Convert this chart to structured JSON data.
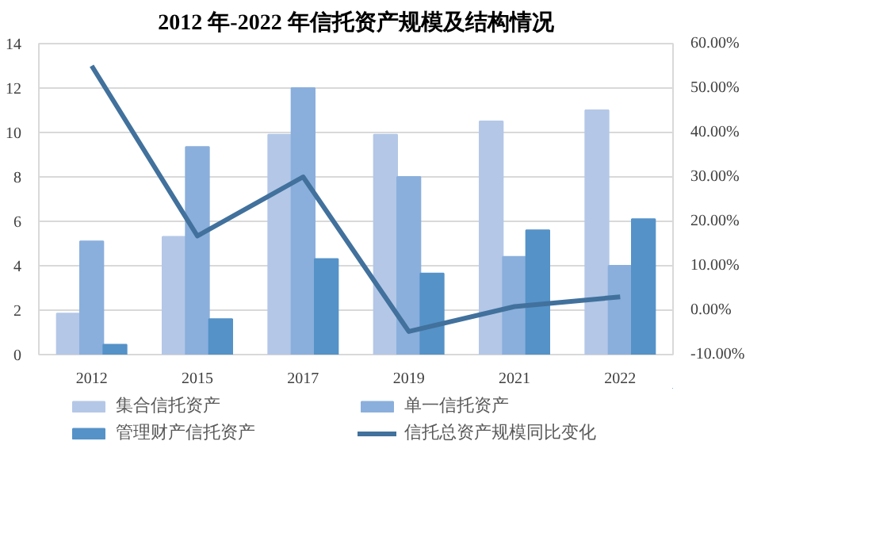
{
  "chart_data": {
    "type": "bar",
    "title": "2012 年-2022 年信托资产规模及结构情况",
    "categories": [
      "2012",
      "2015",
      "2017",
      "2019",
      "2021",
      "2022"
    ],
    "series": [
      {
        "name": "集合信托资产",
        "color": "#b4c7e7",
        "values": [
          1.85,
          5.3,
          9.9,
          9.9,
          10.5,
          11.0
        ]
      },
      {
        "name": "单一信托资产",
        "color": "#8aafdc",
        "values": [
          5.1,
          9.35,
          12.0,
          8.0,
          4.4,
          4.0
        ]
      },
      {
        "name": "管理财产信托资产",
        "color": "#5592c8",
        "values": [
          0.45,
          1.6,
          4.3,
          3.65,
          5.6,
          6.1
        ]
      },
      {
        "name": "信托总资产规模同比变化",
        "color": "#41719c",
        "type": "line",
        "axis": "y2",
        "values": [
          55.0,
          16.7,
          30.0,
          -4.8,
          0.8,
          3.0
        ]
      }
    ],
    "ylim": [
      0,
      14
    ],
    "yticks": [
      0,
      2,
      4,
      6,
      8,
      10,
      12,
      14
    ],
    "y2lim": [
      -10,
      60
    ],
    "y2ticks": [
      {
        "value": -10,
        "label": "-10.00%"
      },
      {
        "value": 0,
        "label": "0.00%"
      },
      {
        "value": 10,
        "label": "10.00%"
      },
      {
        "value": 20,
        "label": "20.00%"
      },
      {
        "value": 30,
        "label": "30.00%"
      },
      {
        "value": 40,
        "label": "40.00%"
      },
      {
        "value": 50,
        "label": "50.00%"
      },
      {
        "value": 60,
        "label": "60.00%"
      }
    ],
    "grid": "y",
    "legend": "bottom"
  }
}
